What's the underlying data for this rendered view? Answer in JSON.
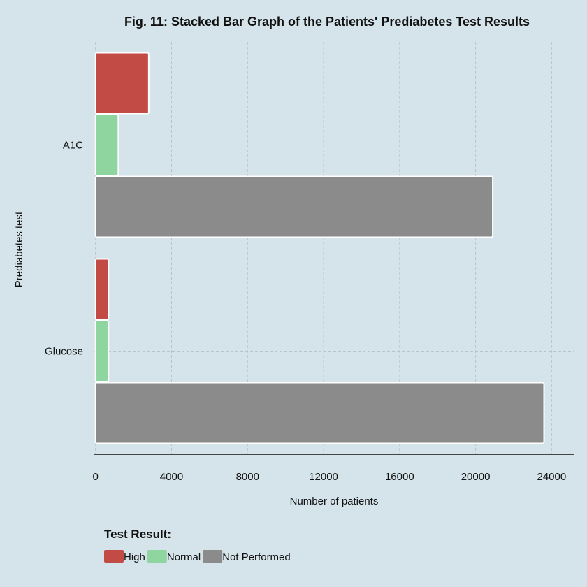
{
  "chart_data": {
    "type": "bar",
    "orientation": "horizontal",
    "title": "Fig. 11: Stacked Bar Graph of the Patients' Prediabetes Test Results",
    "xlabel": "Number of patients",
    "ylabel": "Prediabetes test",
    "xlim": [
      -100,
      25200
    ],
    "x_ticks": [
      0,
      4000,
      8000,
      12000,
      16000,
      20000,
      24000
    ],
    "x_tick_labels": [
      "0",
      "4000",
      "8000",
      "12000",
      "16000",
      "20000",
      "24000"
    ],
    "categories": [
      "A1C",
      "Glucose"
    ],
    "series": [
      {
        "name": "High",
        "color": "#c24b45",
        "values": [
          2800,
          680
        ]
      },
      {
        "name": "Normal",
        "color": "#8fd59f",
        "values": [
          1200,
          680
        ]
      },
      {
        "name": "Not Performed",
        "color": "#8a8b8a",
        "values": [
          20900,
          23600
        ]
      }
    ],
    "grid": true,
    "legend": {
      "title": "Test Result:",
      "position": "bottom-left"
    }
  }
}
